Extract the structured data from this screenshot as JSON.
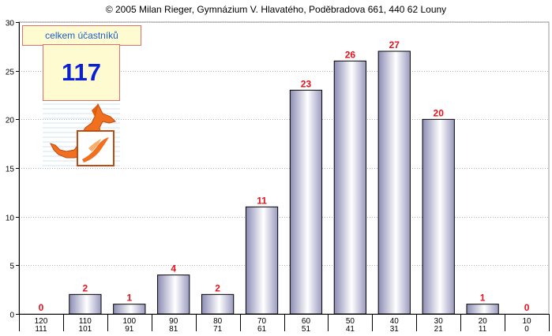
{
  "header": {
    "copyright": "© 2005 Milan Rieger, Gymnázium V. Hlavatého, Poděbradova 661, 440 62 Louny"
  },
  "info": {
    "label": "celkem účastníků",
    "value": "117"
  },
  "logo": {
    "icon": "kangaroo-logo-icon"
  },
  "colors": {
    "value_label": "#e8101a",
    "bar_dark": "#8c8cb4",
    "bar_light": "#ffffff",
    "gridline": "#b0b0b0"
  },
  "chart_data": {
    "type": "bar",
    "categories": [
      [
        "120",
        "111"
      ],
      [
        "110",
        "101"
      ],
      [
        "100",
        "91"
      ],
      [
        "90",
        "81"
      ],
      [
        "80",
        "71"
      ],
      [
        "70",
        "61"
      ],
      [
        "60",
        "51"
      ],
      [
        "50",
        "41"
      ],
      [
        "40",
        "31"
      ],
      [
        "30",
        "21"
      ],
      [
        "20",
        "11"
      ],
      [
        "10",
        "0"
      ]
    ],
    "values": [
      0,
      2,
      1,
      4,
      2,
      11,
      23,
      26,
      27,
      20,
      1,
      0
    ],
    "ylim": [
      0,
      30
    ],
    "yticks": [
      0,
      5,
      10,
      15,
      20,
      25,
      30
    ],
    "grid": true,
    "data_labels": true
  }
}
